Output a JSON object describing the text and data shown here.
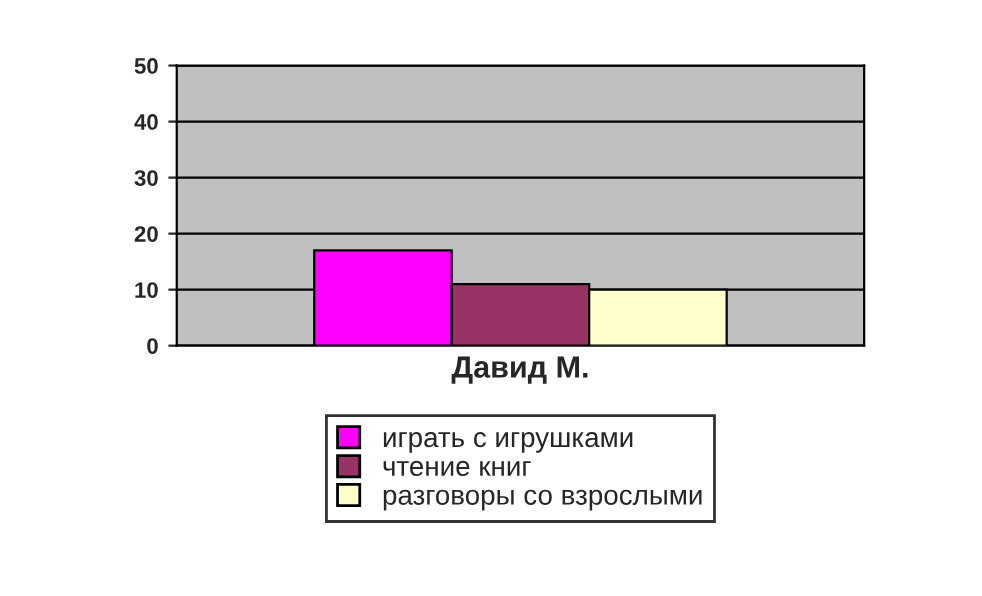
{
  "chart_data": {
    "type": "bar",
    "categories": [
      "Давид М."
    ],
    "series": [
      {
        "name": "играть с игрушками",
        "color": "#ff00ff",
        "values": [
          17
        ]
      },
      {
        "name": "чтение книг",
        "color": "#993366",
        "values": [
          11
        ]
      },
      {
        "name": "разговоры со взрослыми",
        "color": "#ffffcc",
        "values": [
          10
        ]
      }
    ],
    "ylim": [
      0,
      50
    ],
    "yticks": [
      0,
      10,
      20,
      30,
      40,
      50
    ],
    "grid": "y",
    "legend": "bottom"
  }
}
